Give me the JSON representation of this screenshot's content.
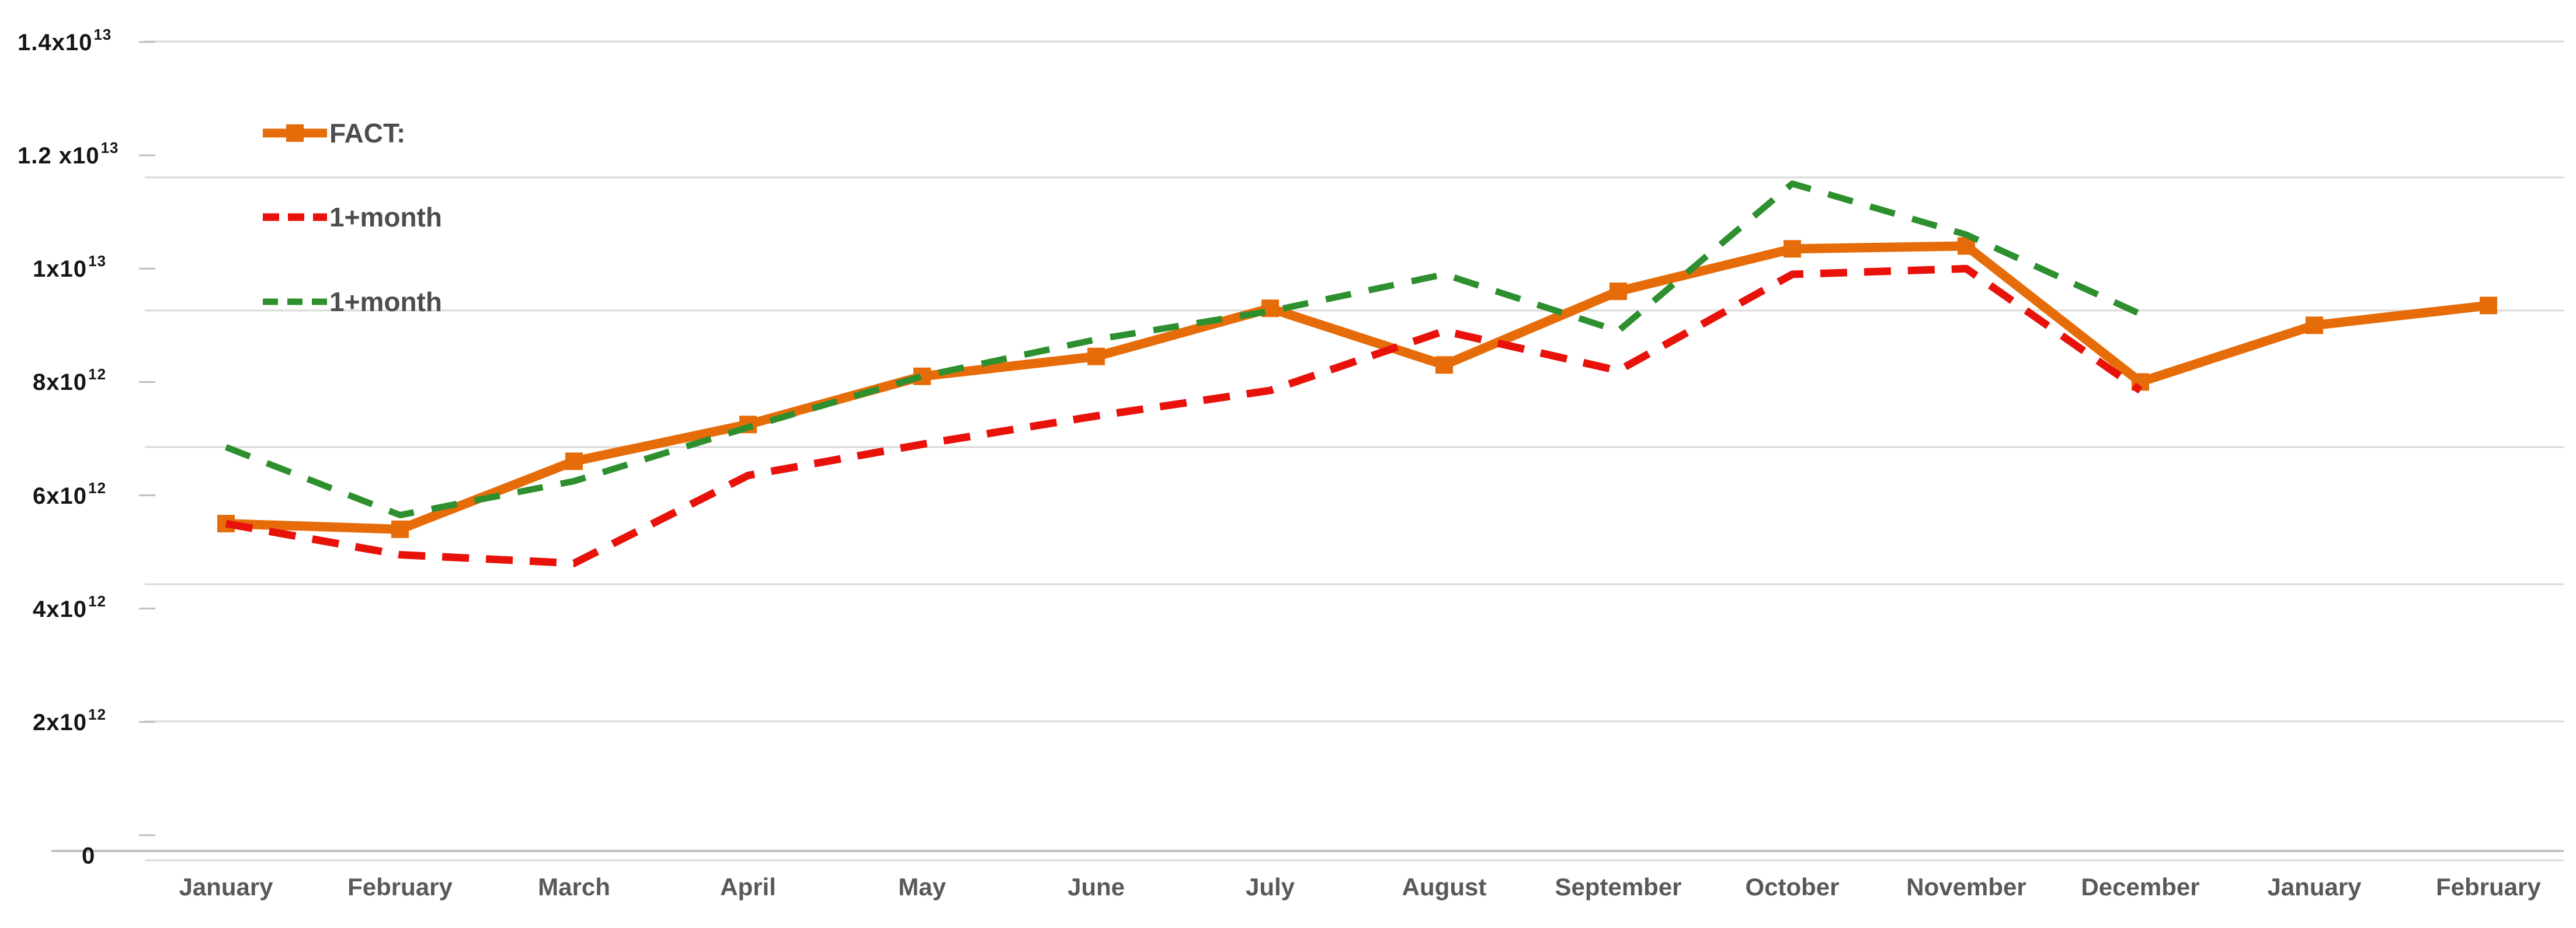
{
  "chart_data": {
    "type": "line",
    "title": "",
    "categories": [
      "January",
      "February",
      "March",
      "April",
      "May",
      "June",
      "July",
      "August",
      "September",
      "October",
      "November",
      "December",
      "January",
      "February"
    ],
    "y_axis": {
      "ylim": [
        0,
        14000000000000.0
      ],
      "grid": true,
      "tick_labels": [
        {
          "base": "1.4x10",
          "sup": "13",
          "value": 14000000000000.0
        },
        {
          "base": "1.2 x10",
          "sup": "13",
          "value": 12000000000000.0
        },
        {
          "base": "1x10",
          "sup": "13",
          "value": 10000000000000.0
        },
        {
          "base": "8x10",
          "sup": "12",
          "value": 8000000000000.0
        },
        {
          "base": "6x10",
          "sup": "12",
          "value": 6000000000000.0
        },
        {
          "base": "4x10",
          "sup": "12",
          "value": 4000000000000.0
        },
        {
          "base": "2x10",
          "sup": "12",
          "value": 2000000000000.0
        },
        {
          "base": "0",
          "sup": "",
          "value": 0
        }
      ]
    },
    "legend_position": "top-left-inside",
    "series": [
      {
        "name": "FACT:",
        "color": "#E66C09",
        "line_style": "solid",
        "marker": "square",
        "values": [
          5500000000000.0,
          5400000000000.0,
          6600000000000.0,
          7250000000000.0,
          8100000000000.0,
          8450000000000.0,
          9300000000000.0,
          8300000000000.0,
          9600000000000.0,
          10350000000000.0,
          10400000000000.0,
          8000000000000.0,
          9000000000000.0,
          9350000000000.0
        ]
      },
      {
        "name": "1+month",
        "color": "#E8120B",
        "line_style": "dashed",
        "marker": "none",
        "values": [
          5500000000000.0,
          4950000000000.0,
          4800000000000.0,
          6350000000000.0,
          6900000000000.0,
          7400000000000.0,
          7850000000000.0,
          8900000000000.0,
          8200000000000.0,
          9900000000000.0,
          10000000000000.0,
          7850000000000.0
        ]
      },
      {
        "name": "1+month",
        "color": "#2E8F2E",
        "line_style": "dashed",
        "marker": "none",
        "values": [
          6850000000000.0,
          5650000000000.0,
          6250000000000.0,
          7200000000000.0,
          8100000000000.0,
          8750000000000.0,
          9250000000000.0,
          9900000000000.0,
          8900000000000.0,
          11500000000000.0,
          10600000000000.0,
          9200000000000.0
        ]
      }
    ]
  },
  "stray_mark": "."
}
